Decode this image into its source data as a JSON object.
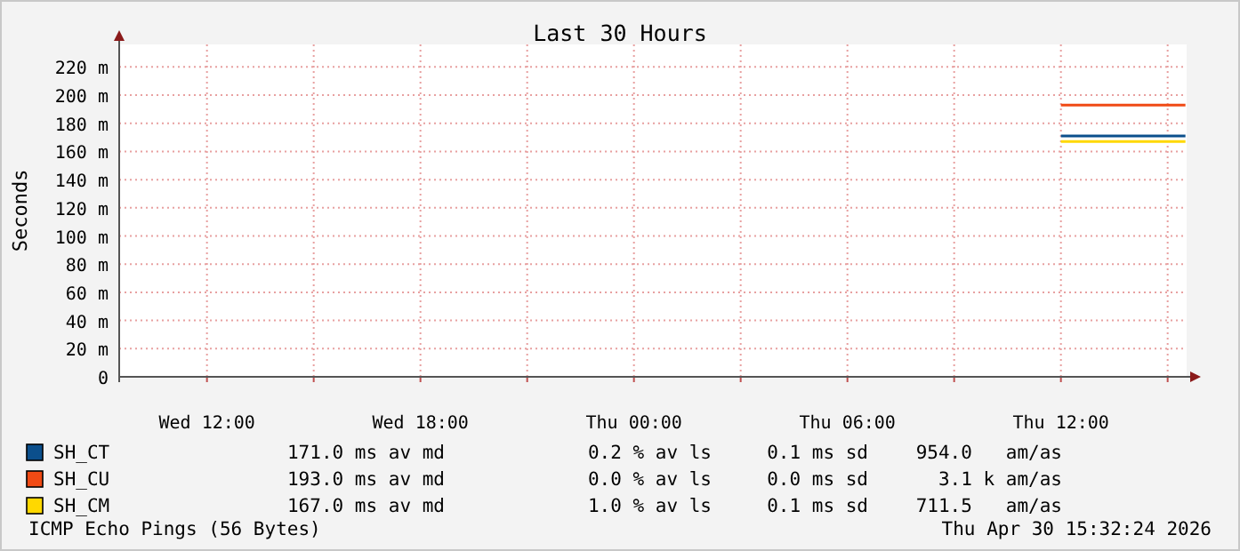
{
  "chart_data": {
    "type": "line",
    "title": "Last 30 Hours",
    "ylabel": "Seconds",
    "xlim": [
      "2026-04-29T09:32",
      "2026-04-30T15:32"
    ],
    "xticks": [
      {
        "value": "2026-04-29T12:00",
        "label": "Wed 12:00"
      },
      {
        "value": "2026-04-29T15:00",
        "label": null
      },
      {
        "value": "2026-04-29T18:00",
        "label": "Wed 18:00"
      },
      {
        "value": "2026-04-29T21:00",
        "label": null
      },
      {
        "value": "2026-04-30T00:00",
        "label": "Thu 00:00"
      },
      {
        "value": "2026-04-30T03:00",
        "label": null
      },
      {
        "value": "2026-04-30T06:00",
        "label": "Thu 06:00"
      },
      {
        "value": "2026-04-30T09:00",
        "label": null
      },
      {
        "value": "2026-04-30T12:00",
        "label": "Thu 12:00"
      },
      {
        "value": "2026-04-30T15:00",
        "label": null
      }
    ],
    "ylim": [
      0,
      236
    ],
    "yticks": [
      0,
      {
        "value": 20,
        "label": "20 m"
      },
      {
        "value": 40,
        "label": "40 m"
      },
      {
        "value": 60,
        "label": "60 m"
      },
      {
        "value": 80,
        "label": "80 m"
      },
      {
        "value": 100,
        "label": "100 m"
      },
      {
        "value": 120,
        "label": "120 m"
      },
      {
        "value": 140,
        "label": "140 m"
      },
      {
        "value": 160,
        "label": "160 m"
      },
      {
        "value": 180,
        "label": "180 m"
      },
      {
        "value": 200,
        "label": "200 m"
      },
      {
        "value": 220,
        "label": "220 m"
      }
    ],
    "grid": true,
    "legend": "bottom",
    "series": [
      {
        "name": "SH_CT",
        "color": "#0b4f8c",
        "x": [
          "2026-04-30T12:00",
          "2026-04-30T15:30"
        ],
        "values": [
          171,
          171
        ]
      },
      {
        "name": "SH_CU",
        "color": "#f04a14",
        "x": [
          "2026-04-30T12:00",
          "2026-04-30T15:30"
        ],
        "values": [
          193,
          193
        ]
      },
      {
        "name": "SH_CM",
        "color": "#ffd800",
        "x": [
          "2026-04-30T12:00",
          "2026-04-30T15:30"
        ],
        "values": [
          167,
          167
        ]
      }
    ],
    "annotations": [
      "171.0 ms av md",
      "0.2 % av ls",
      "0.1 ms sd",
      "954.0   am/as",
      "193.0 ms av md",
      "0.0 % av ls",
      "0.0 ms sd",
      "3.1 k am/as",
      "167.0 ms av md",
      "1.0 % av ls",
      "0.1 ms sd",
      "711.5   am/as",
      "ICMP Echo Pings (56 Bytes)",
      "Thu Apr 30 15:32:24 2026"
    ]
  }
}
